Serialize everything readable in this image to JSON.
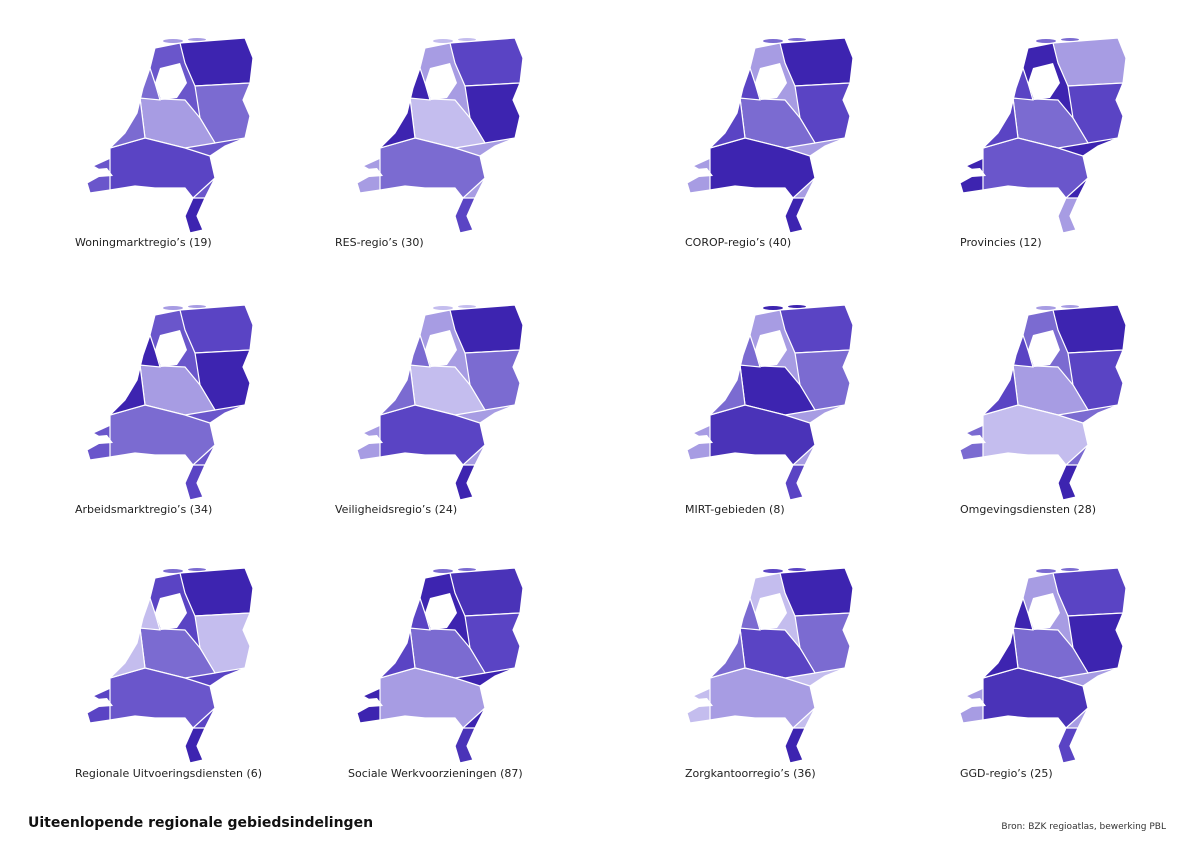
{
  "title": "Uiteenlopende regionale gebiedsindelingen",
  "source": "Bron: BZK regioatlas, bewerking PBL",
  "maps": [
    {
      "label": "Woningmarktregio’s (19)"
    },
    {
      "label": "RES-regio’s (30)"
    },
    {
      "label": "COROP-regio’s (40)"
    },
    {
      "label": "Provincies (12)"
    },
    {
      "label": "Arbeidsmarktregio’s (34)"
    },
    {
      "label": "Veiligheidsregio’s (24)"
    },
    {
      "label": "MIRT-gebieden (8)"
    },
    {
      "label": "Omgevingsdiensten (28)"
    },
    {
      "label": "Regionale Uitvoeringsdiensten (6)"
    },
    {
      "label": "Sociale Werkvoorzieningen (87)"
    },
    {
      "label": "Zorgkantoorregio’s (36)"
    },
    {
      "label": "GGD-regio’s (25)"
    }
  ]
}
